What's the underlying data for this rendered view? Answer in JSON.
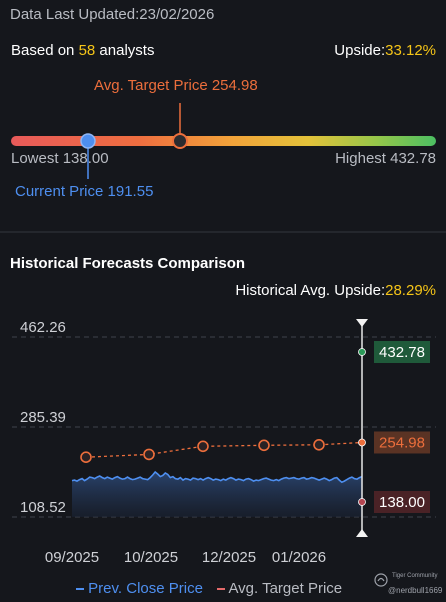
{
  "header": {
    "updated_label": "Data Last Updated:",
    "updated_date": "23/02/2026",
    "based_on_prefix": "Based on ",
    "analyst_count": "58",
    "based_on_suffix": " analysts",
    "upside_label": "Upside:",
    "upside_value": "33.12%"
  },
  "range": {
    "avg_target_label": "Avg. Target Price 254.98",
    "lowest_label": "Lowest 138.00",
    "highest_label": "Highest 432.78",
    "current_label": "Current Price 191.55",
    "lowest": 138.0,
    "highest": 432.78,
    "current": 191.55,
    "avg_target": 254.98
  },
  "section": {
    "title": "Historical Forecasts Comparison",
    "hist_upside_label": "Historical Avg. Upside:",
    "hist_upside_value": "28.29%"
  },
  "legend": {
    "close": "Prev. Close Price",
    "target": "Avg. Target Price"
  },
  "watermark": {
    "line1": "Tiger Community",
    "line2": "@nerdbull1669"
  },
  "colors": {
    "background": "#15171c",
    "accent_yellow": "#f5c518",
    "target_orange": "#ec6e3c",
    "price_blue": "#4e8ff0",
    "high_green": "#2a9a58"
  },
  "chart_data": {
    "type": "line",
    "y_ticks": [
      "462.26",
      "285.39",
      "108.52"
    ],
    "ylim": [
      108.52,
      462.26
    ],
    "x_ticks": [
      "09/2025",
      "10/2025",
      "12/2025",
      "01/2026"
    ],
    "series": [
      {
        "name": "Prev. Close Price",
        "values": [
          180,
          181,
          179,
          182,
          184,
          180,
          183,
          187,
          186,
          184,
          187,
          189,
          186,
          184,
          187,
          185,
          183,
          186,
          188,
          185,
          183,
          184,
          187,
          184,
          182,
          183,
          185,
          187,
          184,
          183,
          182,
          186,
          191,
          197,
          193,
          188,
          190,
          195,
          192,
          186,
          188,
          184,
          183,
          186,
          181,
          184,
          183,
          181,
          185,
          184,
          182,
          184,
          181,
          184,
          186,
          184,
          181,
          183,
          182,
          180,
          183,
          181,
          184,
          186,
          184,
          181,
          183,
          182,
          180,
          183,
          184,
          182,
          179,
          181,
          180,
          182,
          184,
          185,
          183,
          181,
          180,
          182,
          180,
          183,
          185,
          186,
          184,
          185,
          186,
          184,
          183,
          185,
          186,
          183,
          184,
          186,
          185,
          183,
          181,
          183,
          185,
          183,
          180,
          182,
          185,
          186,
          181,
          177,
          179,
          182,
          185,
          187,
          184,
          183,
          186,
          188
        ]
      },
      {
        "name": "Avg. Target Price",
        "values": [
          226.0,
          231.5,
          247.5,
          249.5,
          250.5,
          254.98
        ]
      }
    ],
    "forecast_labels": {
      "high": "432.78",
      "avg": "254.98",
      "low": "138.00"
    },
    "forecast_values": {
      "high": 432.78,
      "avg": 254.98,
      "low": 138.0
    }
  }
}
